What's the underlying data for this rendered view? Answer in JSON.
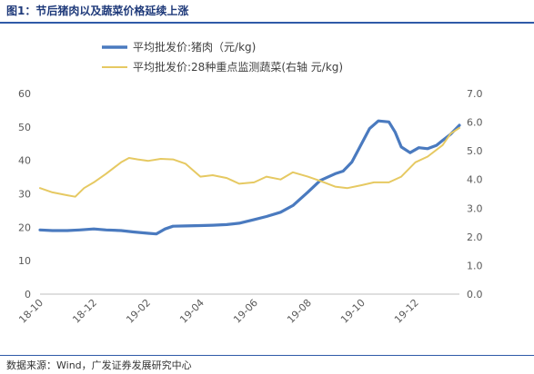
{
  "header": {
    "title": "图1：节后猪肉以及蔬菜价格延续上涨"
  },
  "footer": {
    "source": "数据来源：Wind，广发证券发展研究中心"
  },
  "colors": {
    "pork": "#4a7abf",
    "veg": "#e6c962",
    "title": "#1f3a7a",
    "rule": "#2f5aa8",
    "axis_text": "#595959"
  },
  "chart_data": {
    "type": "line",
    "title": "",
    "x_tick_labels": [
      "18-10",
      "18-12",
      "19-02",
      "19-04",
      "19-06",
      "19-08",
      "19-10",
      "19-12"
    ],
    "y_left": {
      "min": 0,
      "max": 60,
      "step": 10,
      "ticks": [
        "0",
        "10",
        "20",
        "30",
        "40",
        "50",
        "60"
      ]
    },
    "y_right": {
      "min": 0,
      "max": 7,
      "step": 1,
      "ticks": [
        "0.0",
        "1.0",
        "2.0",
        "3.0",
        "4.0",
        "5.0",
        "6.0",
        "7.0"
      ]
    },
    "x_range": [
      "2018-10-01",
      "2020-01-20"
    ],
    "grid": false,
    "legend_position": "top",
    "series": [
      {
        "name": "平均批发价:猪肉（元/kg)",
        "axis": "left",
        "points": [
          [
            "2018-10-01",
            19.2
          ],
          [
            "2018-10-15",
            19.0
          ],
          [
            "2018-11-01",
            19.0
          ],
          [
            "2018-11-15",
            19.2
          ],
          [
            "2018-12-01",
            19.5
          ],
          [
            "2018-12-15",
            19.2
          ],
          [
            "2019-01-01",
            19.0
          ],
          [
            "2019-01-15",
            18.6
          ],
          [
            "2019-02-01",
            18.2
          ],
          [
            "2019-02-10",
            18.0
          ],
          [
            "2019-02-20",
            19.5
          ],
          [
            "2019-03-01",
            20.3
          ],
          [
            "2019-03-15",
            20.4
          ],
          [
            "2019-04-01",
            20.5
          ],
          [
            "2019-04-15",
            20.6
          ],
          [
            "2019-05-01",
            20.8
          ],
          [
            "2019-05-15",
            21.2
          ],
          [
            "2019-06-01",
            22.3
          ],
          [
            "2019-06-15",
            23.2
          ],
          [
            "2019-07-01",
            24.5
          ],
          [
            "2019-07-15",
            26.5
          ],
          [
            "2019-08-01",
            30.5
          ],
          [
            "2019-08-15",
            34.0
          ],
          [
            "2019-09-01",
            36.0
          ],
          [
            "2019-09-10",
            36.8
          ],
          [
            "2019-09-20",
            39.5
          ],
          [
            "2019-10-01",
            45.0
          ],
          [
            "2019-10-10",
            49.5
          ],
          [
            "2019-10-20",
            51.8
          ],
          [
            "2019-11-01",
            51.5
          ],
          [
            "2019-11-08",
            48.5
          ],
          [
            "2019-11-15",
            44.0
          ],
          [
            "2019-11-25",
            42.3
          ],
          [
            "2019-12-05",
            43.8
          ],
          [
            "2019-12-15",
            43.5
          ],
          [
            "2019-12-25",
            44.5
          ],
          [
            "2020-01-01",
            46.0
          ],
          [
            "2020-01-10",
            47.8
          ],
          [
            "2020-01-20",
            50.5
          ]
        ]
      },
      {
        "name": "平均批发价:28种重点监测蔬菜(右轴 元/kg)",
        "axis": "right",
        "points": [
          [
            "2018-10-01",
            3.7
          ],
          [
            "2018-10-15",
            3.55
          ],
          [
            "2018-11-01",
            3.45
          ],
          [
            "2018-11-10",
            3.4
          ],
          [
            "2018-11-20",
            3.7
          ],
          [
            "2018-12-01",
            3.9
          ],
          [
            "2018-12-15",
            4.2
          ],
          [
            "2019-01-01",
            4.6
          ],
          [
            "2019-01-10",
            4.75
          ],
          [
            "2019-01-20",
            4.7
          ],
          [
            "2019-02-01",
            4.65
          ],
          [
            "2019-02-15",
            4.72
          ],
          [
            "2019-03-01",
            4.7
          ],
          [
            "2019-03-15",
            4.55
          ],
          [
            "2019-04-01",
            4.1
          ],
          [
            "2019-04-15",
            4.15
          ],
          [
            "2019-05-01",
            4.05
          ],
          [
            "2019-05-15",
            3.85
          ],
          [
            "2019-06-01",
            3.9
          ],
          [
            "2019-06-15",
            4.1
          ],
          [
            "2019-07-01",
            4.0
          ],
          [
            "2019-07-15",
            4.25
          ],
          [
            "2019-08-01",
            4.1
          ],
          [
            "2019-08-15",
            3.95
          ],
          [
            "2019-09-01",
            3.75
          ],
          [
            "2019-09-15",
            3.7
          ],
          [
            "2019-10-01",
            3.8
          ],
          [
            "2019-10-15",
            3.9
          ],
          [
            "2019-11-01",
            3.9
          ],
          [
            "2019-11-15",
            4.1
          ],
          [
            "2019-12-01",
            4.6
          ],
          [
            "2019-12-15",
            4.8
          ],
          [
            "2020-01-01",
            5.2
          ],
          [
            "2020-01-10",
            5.6
          ],
          [
            "2020-01-20",
            5.8
          ]
        ]
      }
    ]
  }
}
